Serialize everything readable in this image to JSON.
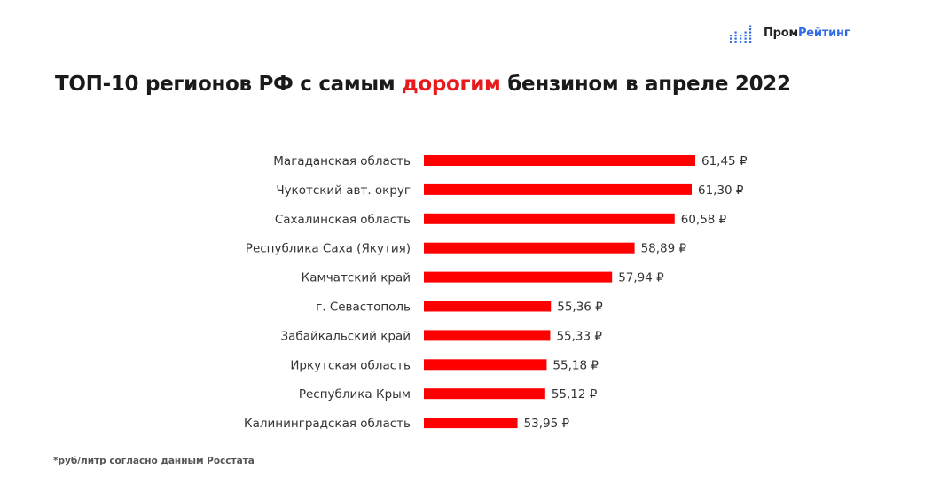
{
  "logo": {
    "part1": "Пром",
    "part2": "Рейтинг",
    "icon": "bar-dots-icon",
    "accent": "#2f6be6"
  },
  "title": {
    "before": "ТОП-10 регионов РФ с самым ",
    "highlight": "дорогим",
    "after": " бензином в апреле 2022"
  },
  "footnote": "*руб/литр согласно данным Росстата",
  "chart_data": {
    "type": "bar",
    "orientation": "horizontal",
    "categories": [
      "Магаданская область",
      "Чукотский авт. округ",
      "Сахалинская область",
      "Республика Саха (Якутия)",
      "Камчатский край",
      "г. Севастополь",
      "Забайкальский край",
      "Иркутская область",
      "Республика Крым",
      "Калининградская область"
    ],
    "values": [
      61.45,
      61.3,
      60.58,
      58.89,
      57.94,
      55.36,
      55.33,
      55.18,
      55.12,
      53.95
    ],
    "value_labels": [
      "61,45 ₽",
      "61,30 ₽",
      "60,58 ₽",
      "58,89 ₽",
      "57,94 ₽",
      "55,36 ₽",
      "55,33 ₽",
      "55,18 ₽",
      "55,12 ₽",
      "53,95 ₽"
    ],
    "xlim": [
      50,
      62
    ],
    "grid": false,
    "bar_color": "#ff0000",
    "title_color": "#e8191c"
  }
}
